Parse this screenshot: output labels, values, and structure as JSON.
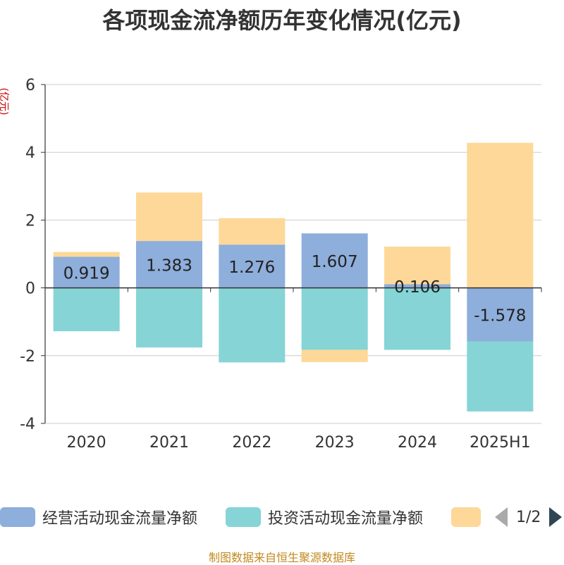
{
  "chart_data": {
    "type": "bar",
    "stacked": true,
    "title": "各项现金流净额历年变化情况(亿元)",
    "ylabel": "(亿元)",
    "categories": [
      "2020",
      "2021",
      "2022",
      "2023",
      "2024",
      "2025H1"
    ],
    "ylim": [
      -4,
      6
    ],
    "yticks": [
      -4,
      -2,
      0,
      2,
      4,
      6
    ],
    "grid": true,
    "legend_position": "bottom",
    "series": [
      {
        "name": "经营活动现金流量净额",
        "color": "#8eaedb",
        "values": [
          0.919,
          1.383,
          1.276,
          1.607,
          0.106,
          -1.578
        ]
      },
      {
        "name": "投资活动现金流量净额",
        "color": "#86d4d6",
        "values": [
          -1.28,
          -1.76,
          -2.2,
          -1.83,
          -1.83,
          -2.07
        ]
      },
      {
        "name": "",
        "color": "#fdd898",
        "values": [
          0.14,
          1.43,
          0.78,
          -0.36,
          1.11,
          4.28
        ]
      }
    ],
    "data_labels": [
      "0.919",
      "1.383",
      "1.276",
      "1.607",
      "0.106",
      "-1.578"
    ]
  },
  "legend": {
    "items": [
      {
        "label": "经营活动现金流量净额",
        "color": "#8eaedb"
      },
      {
        "label": "投资活动现金流量净额",
        "color": "#86d4d6"
      },
      {
        "label": "",
        "color": "#fdd898"
      }
    ],
    "page": "1/2",
    "prev_icon": "triangle-left-icon",
    "next_icon": "triangle-right-icon"
  },
  "footer": "制图数据来自恒生聚源数据库"
}
